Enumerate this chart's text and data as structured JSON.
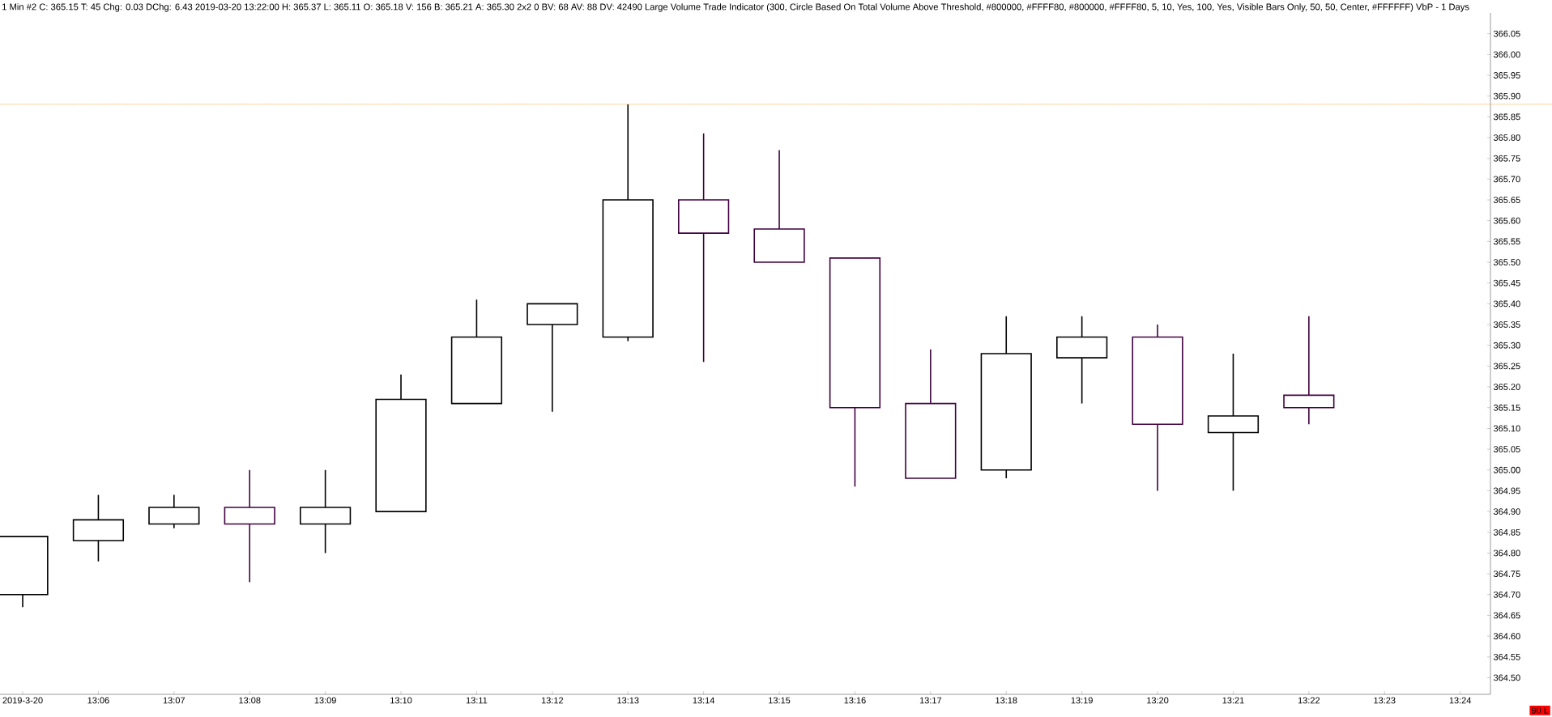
{
  "chart_data": {
    "type": "candlestick",
    "title": "1 Min   #2 C: 365.15 T: 45 Chg: 0.03 DChg: 6.43 2019-03-20 13:22:00 H: 365.37 L: 365.11 O: 365.18 V: 156 B: 365.21 A: 365.30 2x2 0 BV: 68 AV: 88 DV: 42490 Large Volume Trade Indicator  (300, Circle Based On Total Volume Above Threshold, #800000, #FFFF80, #800000, #FFFF80, 5, 10, Yes, 100, Yes, Visible Bars Only, 50, 50, Center, #FFFFFF)  VbP - 1 Days",
    "categories": [
      "2019-3-20",
      "13:06",
      "13:07",
      "13:08",
      "13:09",
      "13:10",
      "13:11",
      "13:12",
      "13:13",
      "13:14",
      "13:15",
      "13:16",
      "13:17",
      "13:18",
      "13:19",
      "13:20",
      "13:21",
      "13:22",
      "13:23",
      "13:24"
    ],
    "ohlc": [
      [
        364.7,
        364.84,
        364.67,
        364.84
      ],
      [
        364.83,
        364.94,
        364.78,
        364.88
      ],
      [
        364.87,
        364.94,
        364.86,
        364.91
      ],
      [
        364.91,
        365.0,
        364.73,
        364.87
      ],
      [
        364.87,
        365.0,
        364.8,
        364.91
      ],
      [
        364.9,
        365.23,
        364.9,
        365.17
      ],
      [
        365.16,
        365.41,
        365.16,
        365.32
      ],
      [
        365.35,
        365.4,
        365.14,
        365.4
      ],
      [
        365.32,
        365.88,
        365.31,
        365.65
      ],
      [
        365.65,
        365.81,
        365.26,
        365.57
      ],
      [
        365.58,
        365.77,
        365.5,
        365.5
      ],
      [
        365.51,
        365.51,
        364.96,
        365.15
      ],
      [
        365.16,
        365.29,
        364.98,
        364.98
      ],
      [
        365.0,
        365.37,
        364.98,
        365.28
      ],
      [
        365.27,
        365.37,
        365.16,
        365.32
      ],
      [
        365.32,
        365.35,
        364.95,
        365.11
      ],
      [
        365.09,
        365.28,
        364.95,
        365.13
      ],
      [
        365.18,
        365.37,
        365.11,
        365.15
      ],
      null,
      null
    ],
    "ylim": [
      364.46,
      366.1
    ],
    "yticks": [
      {
        "value": 364.5,
        "label": "364.50"
      },
      {
        "value": 364.55,
        "label": "364.55"
      },
      {
        "value": 364.6,
        "label": "364.60"
      },
      {
        "value": 364.65,
        "label": "364.65"
      },
      {
        "value": 364.7,
        "label": "364.70"
      },
      {
        "value": 364.75,
        "label": "364.75"
      },
      {
        "value": 364.8,
        "label": "364.80"
      },
      {
        "value": 364.85,
        "label": "364.85"
      },
      {
        "value": 364.9,
        "label": "364.90"
      },
      {
        "value": 364.95,
        "label": "364.95"
      },
      {
        "value": 365.0,
        "label": "365.00"
      },
      {
        "value": 365.05,
        "label": "365.05"
      },
      {
        "value": 365.1,
        "label": "365.10"
      },
      {
        "value": 365.15,
        "label": "365.15"
      },
      {
        "value": 365.2,
        "label": "365.20"
      },
      {
        "value": 365.25,
        "label": "365.25"
      },
      {
        "value": 365.3,
        "label": "365.30"
      },
      {
        "value": 365.35,
        "label": "365.35"
      },
      {
        "value": 365.4,
        "label": "365.40"
      },
      {
        "value": 365.45,
        "label": "365.45"
      },
      {
        "value": 365.5,
        "label": "365.50"
      },
      {
        "value": 365.55,
        "label": "365.55"
      },
      {
        "value": 365.6,
        "label": "365.60"
      },
      {
        "value": 365.65,
        "label": "365.65"
      },
      {
        "value": 365.7,
        "label": "365.70"
      },
      {
        "value": 365.75,
        "label": "365.75"
      },
      {
        "value": 365.8,
        "label": "365.80"
      },
      {
        "value": 365.85,
        "label": "365.85"
      },
      {
        "value": 365.9,
        "label": "365.90"
      },
      {
        "value": 365.95,
        "label": "365.95"
      },
      {
        "value": 366.0,
        "label": "366.00"
      },
      {
        "value": 366.05,
        "label": "366.05"
      }
    ],
    "ref_lines": [
      {
        "axis": "y",
        "value": 365.88,
        "color": "#ff8c00",
        "line_style": "dotted"
      }
    ],
    "annotations": [
      "90 L"
    ],
    "grid": false
  }
}
